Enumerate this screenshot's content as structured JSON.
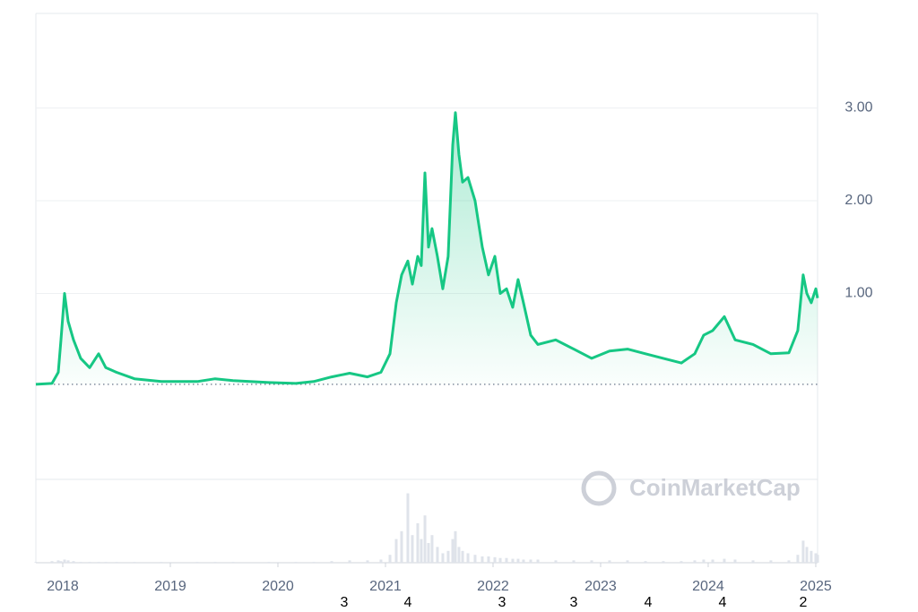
{
  "chart_data": {
    "type": "line",
    "x": [
      2017.75,
      2017.9,
      2017.958,
      2017.983,
      2018.017,
      2018.05,
      2018.1,
      2018.167,
      2018.25,
      2018.333,
      2018.4,
      2018.5,
      2018.667,
      2018.917,
      2019.25,
      2019.417,
      2019.583,
      2019.917,
      2020.167,
      2020.333,
      2020.5,
      2020.667,
      2020.833,
      2020.958,
      2021.042,
      2021.1,
      2021.15,
      2021.208,
      2021.25,
      2021.3,
      2021.333,
      2021.367,
      2021.4,
      2021.433,
      2021.483,
      2021.533,
      2021.583,
      2021.625,
      2021.65,
      2021.683,
      2021.717,
      2021.767,
      2021.833,
      2021.9,
      2021.958,
      2022.017,
      2022.067,
      2022.125,
      2022.183,
      2022.233,
      2022.283,
      2022.35,
      2022.417,
      2022.583,
      2022.75,
      2022.917,
      2023.083,
      2023.25,
      2023.417,
      2023.583,
      2023.75,
      2023.875,
      2023.958,
      2024.042,
      2024.15,
      2024.25,
      2024.417,
      2024.583,
      2024.75,
      2024.833,
      2024.883,
      2024.917,
      2024.958,
      2025,
      2025.017
    ],
    "series": [
      {
        "color": "#16c784",
        "values": [
          0.02,
          0.03,
          0.15,
          0.5,
          1.0,
          0.7,
          0.5,
          0.3,
          0.2,
          0.35,
          0.2,
          0.15,
          0.08,
          0.05,
          0.05,
          0.08,
          0.06,
          0.04,
          0.03,
          0.05,
          0.1,
          0.14,
          0.1,
          0.15,
          0.35,
          0.9,
          1.2,
          1.35,
          1.1,
          1.4,
          1.3,
          2.3,
          1.5,
          1.7,
          1.4,
          1.05,
          1.4,
          2.6,
          2.95,
          2.5,
          2.2,
          2.25,
          2.0,
          1.5,
          1.2,
          1.4,
          1.0,
          1.05,
          0.85,
          1.15,
          0.9,
          0.55,
          0.45,
          0.5,
          0.4,
          0.3,
          0.38,
          0.4,
          0.35,
          0.3,
          0.25,
          0.35,
          0.55,
          0.6,
          0.75,
          0.5,
          0.45,
          0.35,
          0.36,
          0.6,
          1.2,
          1.0,
          0.9,
          1.05,
          0.95
        ]
      },
      {
        "color": "#dfe3ea",
        "axis": "y2",
        "values": [
          1,
          2,
          3,
          2,
          4,
          3,
          2,
          1,
          1,
          1,
          1,
          1,
          1,
          1,
          1,
          1,
          1,
          1,
          1,
          1,
          2,
          3,
          3,
          4,
          10,
          30,
          40,
          88,
          35,
          50,
          30,
          60,
          25,
          35,
          20,
          12,
          15,
          30,
          40,
          20,
          15,
          12,
          10,
          8,
          8,
          7,
          6,
          6,
          5,
          5,
          4,
          4,
          4,
          3,
          3,
          3,
          3,
          3,
          2,
          2,
          2,
          3,
          4,
          4,
          5,
          4,
          3,
          3,
          3,
          10,
          28,
          20,
          15,
          12,
          10
        ]
      }
    ],
    "xlim": [
      2017.75,
      2025.017
    ],
    "xticks": [
      2018,
      2019,
      2020,
      2021,
      2022,
      2023,
      2024,
      2025
    ],
    "ylim": [
      0,
      4
    ],
    "yticks": [
      {
        "value": 1,
        "label": "1.00"
      },
      {
        "value": 2,
        "label": "2.00"
      },
      {
        "value": 3,
        "label": "3.00"
      }
    ],
    "y2lim": [
      0,
      100
    ],
    "grid": true,
    "watermark": "CoinMarketCap",
    "footer_labels": [
      "3",
      "4",
      "3",
      "3",
      "4",
      "4",
      "2"
    ]
  }
}
